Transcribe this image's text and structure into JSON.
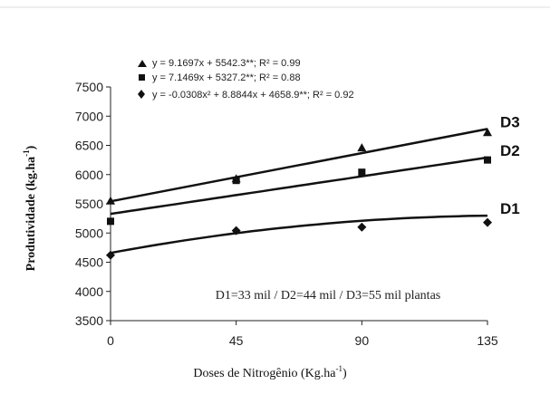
{
  "chart_data": {
    "type": "scatter",
    "xlabel": "Doses de Nitrogênio (Kg.ha",
    "xlabel_sup": "-1",
    "xlabel_end": ")",
    "ylabel": "Produtividade (kg.ha",
    "ylabel_sup": "-1",
    "ylabel_end": ")",
    "x_ticks": [
      0,
      45,
      90,
      135
    ],
    "y_ticks": [
      3500,
      4000,
      4500,
      5000,
      5500,
      6000,
      6500,
      7000,
      7500
    ],
    "xlim": [
      0,
      135
    ],
    "ylim": [
      3500,
      7500
    ],
    "grid": false,
    "note": "D1=33 mil / D2=44 mil / D3=55 mil plantas",
    "series": [
      {
        "name": "D3",
        "marker": "triangle",
        "equation": "y = 9.1697x + 5542.3**; R² = 0.99",
        "x": [
          0,
          45,
          90,
          135
        ],
        "y": [
          5550,
          5930,
          6460,
          6720
        ],
        "fit": {
          "kind": "linear",
          "a": 9.1697,
          "b": 5542.3
        }
      },
      {
        "name": "D2",
        "marker": "square",
        "equation": "y = 7.1469x + 5327.2**; R² = 0.88",
        "x": [
          0,
          45,
          90,
          135
        ],
        "y": [
          5200,
          5900,
          6040,
          6250
        ],
        "fit": {
          "kind": "linear",
          "a": 7.1469,
          "b": 5327.2
        }
      },
      {
        "name": "D1",
        "marker": "diamond",
        "equation": "y = -0.0308x² + 8.8844x + 4658.9**; R² = 0.92",
        "x": [
          0,
          45,
          90,
          135
        ],
        "y": [
          4620,
          5040,
          5100,
          5180
        ],
        "fit": {
          "kind": "quadratic",
          "a": -0.0308,
          "b": 8.8844,
          "c": 4658.9
        }
      }
    ]
  }
}
